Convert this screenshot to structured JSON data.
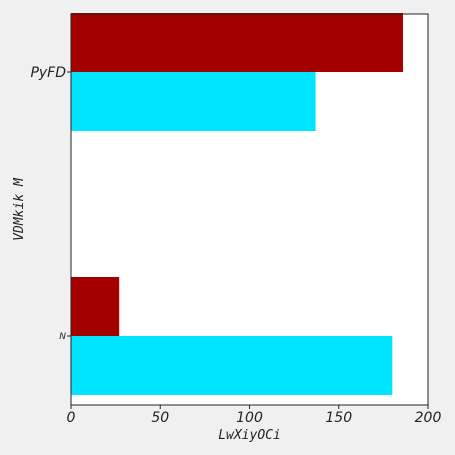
{
  "chart_data": {
    "type": "bar",
    "orientation": "horizontal",
    "title": "",
    "xlabel": "LwXiyOCi",
    "ylabel": "VDMkik M",
    "xlim": [
      0,
      200
    ],
    "xticks": [
      0,
      50,
      100,
      150,
      200
    ],
    "xtick_labels": [
      "0",
      "50",
      "100",
      "150",
      "200"
    ],
    "categories": [
      "PyFD",
      "N"
    ],
    "series": [
      {
        "color": "#a40000",
        "values": [
          186,
          27
        ]
      },
      {
        "color": "#00e5ff",
        "values": [
          137,
          180
        ]
      }
    ],
    "grid": false,
    "legend": "none"
  }
}
